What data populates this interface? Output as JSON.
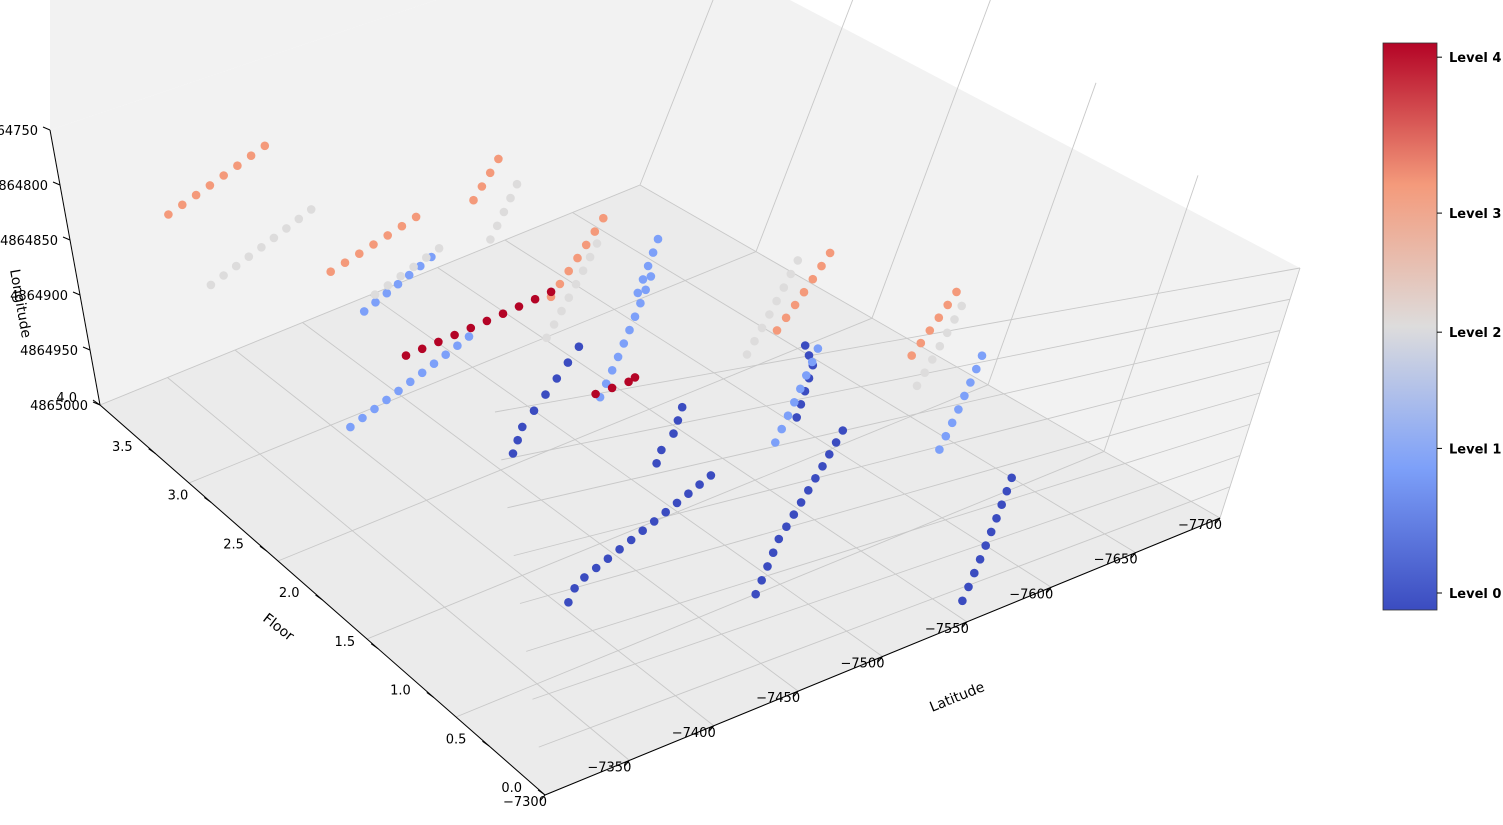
{
  "chart_data": {
    "type": "scatter",
    "projection": "3d",
    "title": "",
    "axes": {
      "x": {
        "label": "Latitude",
        "ticks": [
          "−7300",
          "−7350",
          "−7400",
          "−7450",
          "−7500",
          "−7550",
          "−7600",
          "−7650",
          "−7700"
        ],
        "range": [
          -7300,
          -7700
        ]
      },
      "y": {
        "label": "Longitude",
        "ticks": [
          "4864750",
          "4864800",
          "4864850",
          "4864900",
          "4864950",
          "4865000"
        ],
        "range": [
          4864750,
          4865000
        ]
      },
      "z": {
        "label": "Floor",
        "ticks": [
          "0.0",
          "0.5",
          "1.0",
          "1.5",
          "2.0",
          "2.5",
          "3.0",
          "3.5",
          "4.0"
        ],
        "range": [
          0,
          4
        ]
      }
    },
    "grid": true,
    "colorbar": {
      "colormap": "coolwarm",
      "labels": [
        "Level 0",
        "Level 1",
        "Level 2",
        "Level 3",
        "Level 4"
      ],
      "colors": [
        "#3b4cc0",
        "#7da0f9",
        "#dddcdc",
        "#f49a7b",
        "#b40426"
      ]
    },
    "series": [
      {
        "floor": 0,
        "color": "#3b4cc0",
        "points": [
          [
            -7405,
            4864830
          ],
          [
            -7415,
            4864835
          ],
          [
            -7425,
            4864838
          ],
          [
            -7435,
            4864840
          ],
          [
            -7445,
            4864842
          ],
          [
            -7455,
            4864844
          ],
          [
            -7465,
            4864846
          ],
          [
            -7475,
            4864848
          ],
          [
            -7485,
            4864850
          ],
          [
            -7495,
            4864852
          ],
          [
            -7505,
            4864854
          ],
          [
            -7515,
            4864856
          ],
          [
            -7525,
            4864858
          ],
          [
            -7535,
            4864860
          ],
          [
            -7485,
            4864800
          ],
          [
            -7495,
            4864805
          ],
          [
            -7505,
            4864810
          ],
          [
            -7515,
            4864815
          ],
          [
            -7525,
            4864820
          ],
          [
            -7535,
            4864824
          ],
          [
            -7545,
            4864828
          ],
          [
            -7555,
            4864832
          ],
          [
            -7565,
            4864836
          ],
          [
            -7575,
            4864840
          ],
          [
            -7585,
            4864844
          ],
          [
            -7595,
            4864848
          ],
          [
            -7605,
            4864852
          ],
          [
            -7615,
            4864856
          ],
          [
            -7560,
            4864760
          ],
          [
            -7570,
            4864765
          ],
          [
            -7580,
            4864770
          ],
          [
            -7590,
            4864775
          ],
          [
            -7600,
            4864780
          ],
          [
            -7610,
            4864785
          ],
          [
            -7620,
            4864790
          ],
          [
            -7630,
            4864795
          ],
          [
            -7640,
            4864800
          ],
          [
            -7650,
            4864805
          ],
          [
            -7605,
            4864870
          ],
          [
            -7615,
            4864875
          ],
          [
            -7625,
            4864880
          ],
          [
            -7635,
            4864885
          ],
          [
            -7645,
            4864890
          ],
          [
            -7650,
            4864895
          ],
          [
            -7655,
            4864900
          ],
          [
            -7465,
            4864905
          ],
          [
            -7475,
            4864910
          ],
          [
            -7485,
            4864915
          ],
          [
            -7500,
            4864920
          ],
          [
            -7515,
            4864925
          ],
          [
            -7530,
            4864930
          ],
          [
            -7545,
            4864935
          ],
          [
            -7560,
            4864940
          ],
          [
            -7520,
            4864875
          ],
          [
            -7530,
            4864880
          ],
          [
            -7545,
            4864885
          ],
          [
            -7555,
            4864890
          ],
          [
            -7565,
            4864895
          ]
        ]
      },
      {
        "floor": 1,
        "color": "#7da0f9",
        "points": [
          [
            -7365,
            4864910
          ],
          [
            -7375,
            4864912
          ],
          [
            -7385,
            4864914
          ],
          [
            -7395,
            4864916
          ],
          [
            -7405,
            4864918
          ],
          [
            -7415,
            4864920
          ],
          [
            -7425,
            4864922
          ],
          [
            -7435,
            4864924
          ],
          [
            -7445,
            4864926
          ],
          [
            -7455,
            4864928
          ],
          [
            -7465,
            4864930
          ],
          [
            -7435,
            4864960
          ],
          [
            -7445,
            4864962
          ],
          [
            -7455,
            4864964
          ],
          [
            -7465,
            4864966
          ],
          [
            -7475,
            4864968
          ],
          [
            -7485,
            4864970
          ],
          [
            -7495,
            4864972
          ],
          [
            -7485,
            4864880
          ],
          [
            -7495,
            4864885
          ],
          [
            -7505,
            4864890
          ],
          [
            -7515,
            4864895
          ],
          [
            -7525,
            4864900
          ],
          [
            -7535,
            4864905
          ],
          [
            -7545,
            4864910
          ],
          [
            -7555,
            4864915
          ],
          [
            -7565,
            4864920
          ],
          [
            -7575,
            4864925
          ],
          [
            -7530,
            4864830
          ],
          [
            -7540,
            4864835
          ],
          [
            -7550,
            4864840
          ],
          [
            -7560,
            4864845
          ],
          [
            -7570,
            4864850
          ],
          [
            -7580,
            4864855
          ],
          [
            -7590,
            4864860
          ],
          [
            -7600,
            4864865
          ],
          [
            -7590,
            4864800
          ],
          [
            -7600,
            4864805
          ],
          [
            -7610,
            4864810
          ],
          [
            -7620,
            4864815
          ],
          [
            -7630,
            4864820
          ],
          [
            -7640,
            4864825
          ],
          [
            -7650,
            4864830
          ],
          [
            -7660,
            4864835
          ],
          [
            -7560,
            4864920
          ],
          [
            -7570,
            4864925
          ],
          [
            -7580,
            4864930
          ],
          [
            -7590,
            4864935
          ],
          [
            -7600,
            4864940
          ]
        ]
      },
      {
        "floor": 2,
        "color": "#dddcdc",
        "points": [
          [
            -7345,
            4864965
          ],
          [
            -7355,
            4864967
          ],
          [
            -7365,
            4864969
          ],
          [
            -7375,
            4864971
          ],
          [
            -7385,
            4864973
          ],
          [
            -7395,
            4864975
          ],
          [
            -7405,
            4864977
          ],
          [
            -7415,
            4864979
          ],
          [
            -7425,
            4864981
          ],
          [
            -7405,
            4864930
          ],
          [
            -7415,
            4864932
          ],
          [
            -7425,
            4864934
          ],
          [
            -7435,
            4864936
          ],
          [
            -7445,
            4864938
          ],
          [
            -7455,
            4864940
          ],
          [
            -7450,
            4864880
          ],
          [
            -7460,
            4864885
          ],
          [
            -7470,
            4864890
          ],
          [
            -7480,
            4864895
          ],
          [
            -7490,
            4864900
          ],
          [
            -7500,
            4864905
          ],
          [
            -7510,
            4864910
          ],
          [
            -7520,
            4864915
          ],
          [
            -7520,
            4864840
          ],
          [
            -7530,
            4864845
          ],
          [
            -7540,
            4864850
          ],
          [
            -7550,
            4864855
          ],
          [
            -7560,
            4864860
          ],
          [
            -7570,
            4864865
          ],
          [
            -7580,
            4864870
          ],
          [
            -7590,
            4864875
          ],
          [
            -7570,
            4864800
          ],
          [
            -7580,
            4864805
          ],
          [
            -7590,
            4864810
          ],
          [
            -7600,
            4864815
          ],
          [
            -7610,
            4864820
          ],
          [
            -7620,
            4864825
          ],
          [
            -7630,
            4864830
          ],
          [
            -7480,
            4864935
          ],
          [
            -7490,
            4864940
          ],
          [
            -7500,
            4864945
          ],
          [
            -7510,
            4864950
          ],
          [
            -7520,
            4864955
          ]
        ]
      },
      {
        "floor": 3,
        "color": "#f49a7b",
        "points": [
          [
            -7330,
            4864970
          ],
          [
            -7340,
            4864972
          ],
          [
            -7350,
            4864974
          ],
          [
            -7360,
            4864976
          ],
          [
            -7370,
            4864978
          ],
          [
            -7380,
            4864980
          ],
          [
            -7390,
            4864982
          ],
          [
            -7400,
            4864984
          ],
          [
            -7360,
            4864910
          ],
          [
            -7370,
            4864912
          ],
          [
            -7380,
            4864914
          ],
          [
            -7390,
            4864916
          ],
          [
            -7400,
            4864918
          ],
          [
            -7410,
            4864920
          ],
          [
            -7420,
            4864922
          ],
          [
            -7430,
            4864860
          ],
          [
            -7440,
            4864865
          ],
          [
            -7450,
            4864870
          ],
          [
            -7460,
            4864875
          ],
          [
            -7470,
            4864880
          ],
          [
            -7480,
            4864885
          ],
          [
            -7490,
            4864890
          ],
          [
            -7500,
            4864810
          ],
          [
            -7510,
            4864815
          ],
          [
            -7520,
            4864820
          ],
          [
            -7530,
            4864825
          ],
          [
            -7540,
            4864830
          ],
          [
            -7550,
            4864835
          ],
          [
            -7560,
            4864840
          ],
          [
            -7540,
            4864780
          ],
          [
            -7550,
            4864785
          ],
          [
            -7560,
            4864790
          ],
          [
            -7570,
            4864795
          ],
          [
            -7580,
            4864800
          ],
          [
            -7590,
            4864805
          ],
          [
            -7450,
            4864920
          ],
          [
            -7460,
            4864925
          ],
          [
            -7470,
            4864930
          ],
          [
            -7480,
            4864935
          ]
        ]
      },
      {
        "floor": 4,
        "color": "#b40426",
        "points": [
          [
            -7300,
            4864800
          ],
          [
            -7310,
            4864802
          ],
          [
            -7320,
            4864804
          ],
          [
            -7330,
            4864806
          ],
          [
            -7340,
            4864808
          ],
          [
            -7350,
            4864810
          ],
          [
            -7360,
            4864812
          ],
          [
            -7370,
            4864814
          ],
          [
            -7380,
            4864816
          ],
          [
            -7390,
            4864818
          ],
          [
            -7350,
            4864750
          ],
          [
            -7360,
            4864752
          ],
          [
            -7370,
            4864754
          ],
          [
            -7375,
            4864756
          ]
        ]
      }
    ]
  }
}
